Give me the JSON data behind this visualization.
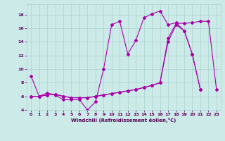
{
  "xlabel": "Windchill (Refroidissement éolien,°C)",
  "background_color": "#cceae7",
  "grid_color": "#aad4d0",
  "line_color": "#aa00aa",
  "xmin": 0,
  "xmax": 23,
  "ymin": 4,
  "ymax": 19,
  "yticks": [
    4,
    6,
    8,
    10,
    12,
    14,
    16,
    18
  ],
  "xticks": [
    0,
    1,
    2,
    3,
    4,
    5,
    6,
    7,
    8,
    9,
    10,
    11,
    12,
    13,
    14,
    15,
    16,
    17,
    18,
    19,
    20,
    21,
    22,
    23
  ],
  "line1_x": [
    0,
    1,
    2,
    3,
    4,
    5,
    6,
    7,
    8,
    9,
    10,
    11,
    12,
    13,
    14,
    15,
    16,
    17,
    18,
    19,
    20,
    21
  ],
  "line1_y": [
    9.0,
    6.0,
    6.5,
    6.2,
    5.5,
    5.5,
    5.5,
    4.0,
    5.2,
    10.0,
    16.5,
    17.0,
    12.2,
    14.2,
    17.5,
    18.1,
    18.5,
    16.5,
    16.8,
    15.6,
    12.2,
    7.0
  ],
  "line2_x": [
    0,
    1,
    2,
    3,
    4,
    5,
    6,
    7,
    8,
    9,
    10,
    11,
    12,
    13,
    14,
    15,
    16,
    17,
    18,
    19,
    20,
    21,
    22,
    23
  ],
  "line2_y": [
    6.0,
    6.0,
    6.2,
    6.3,
    6.0,
    5.8,
    5.8,
    5.8,
    6.0,
    6.2,
    6.4,
    6.6,
    6.8,
    7.0,
    7.3,
    7.6,
    8.0,
    14.5,
    16.7,
    16.7,
    16.8,
    17.0,
    17.0,
    7.0
  ],
  "line3_x": [
    0,
    1,
    2,
    3,
    4,
    5,
    6,
    7,
    8,
    9,
    10,
    11,
    12,
    13,
    14,
    15,
    16,
    17,
    18,
    19,
    20,
    21
  ],
  "line3_y": [
    6.0,
    6.0,
    6.2,
    6.3,
    6.0,
    5.8,
    5.8,
    5.8,
    6.0,
    6.2,
    6.4,
    6.6,
    6.8,
    7.0,
    7.3,
    7.6,
    8.0,
    14.0,
    16.5,
    15.6,
    12.2,
    7.0
  ]
}
